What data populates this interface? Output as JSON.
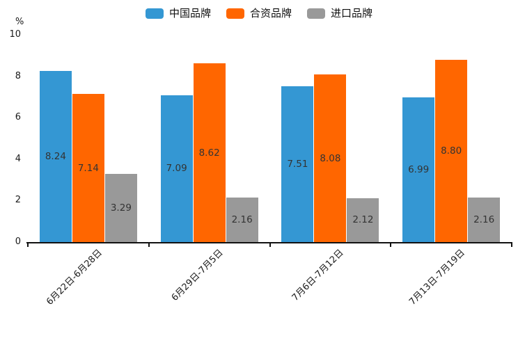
{
  "chart_data": {
    "type": "bar",
    "title": "",
    "xlabel": "",
    "ylabel": "%",
    "ylim": [
      0,
      10
    ],
    "yticks": [
      0,
      2,
      4,
      6,
      8,
      10
    ],
    "grid": false,
    "legend_position": "top-center",
    "value_label_decimals": 2,
    "categories": [
      "6月22日-6月28日",
      "6月29日-7月5日",
      "7月6日-7月12日",
      "7月13日-7月19日"
    ],
    "series": [
      {
        "name": "中国品牌",
        "color": "#3497d3",
        "values": [
          8.24,
          7.09,
          7.51,
          6.99
        ]
      },
      {
        "name": "合资品牌",
        "color": "#ff6600",
        "values": [
          7.14,
          8.62,
          8.08,
          8.8
        ]
      },
      {
        "name": "进口品牌",
        "color": "#999999",
        "values": [
          3.29,
          2.16,
          2.12,
          2.16
        ]
      }
    ]
  },
  "colors": {
    "axis": "#111111",
    "tick_label": "#1a1a1a",
    "value_label": "#333333",
    "background": "#ffffff"
  }
}
